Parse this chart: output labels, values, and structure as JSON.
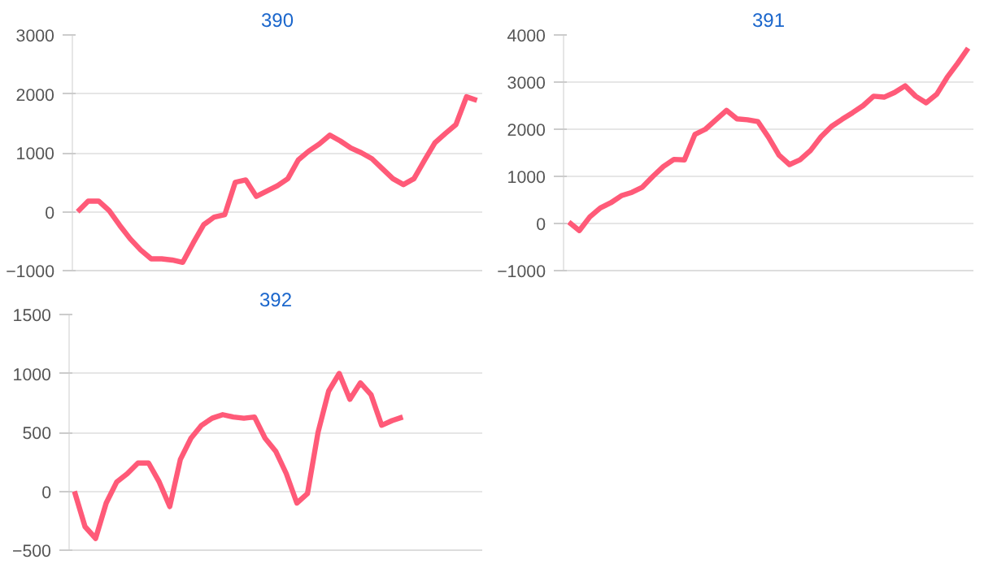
{
  "chart_data": [
    {
      "type": "line",
      "title": "390",
      "categories": [
        null,
        null,
        null,
        null,
        null,
        null,
        null,
        null,
        null,
        null,
        null,
        null,
        null,
        null,
        null,
        null,
        null,
        null,
        null,
        null,
        null,
        null,
        null,
        null,
        null,
        null,
        null,
        null,
        null,
        null,
        null,
        null,
        null,
        null,
        null,
        null,
        null,
        null,
        null
      ],
      "series": [
        {
          "color": "#ff5a78",
          "values": [
            0,
            180,
            180,
            20,
            -230,
            -460,
            -650,
            -800,
            -800,
            -820,
            -860,
            -530,
            -220,
            -90,
            -50,
            500,
            540,
            260,
            350,
            440,
            560,
            880,
            1030,
            1150,
            1300,
            1200,
            1080,
            1000,
            900,
            730,
            560,
            460,
            560,
            870,
            1170,
            1330,
            1480,
            1950,
            1890
          ]
        }
      ],
      "ylim": [
        -1000,
        3000
      ],
      "yticks": [
        -1000,
        0,
        1000,
        2000,
        3000
      ],
      "grid": "y",
      "tick_labels": "y",
      "marker": "none",
      "line_style": "solid"
    },
    {
      "type": "line",
      "title": "391",
      "categories": [
        null,
        null,
        null,
        null,
        null,
        null,
        null,
        null,
        null,
        null,
        null,
        null,
        null,
        null,
        null,
        null,
        null,
        null,
        null,
        null,
        null,
        null,
        null,
        null,
        null,
        null,
        null,
        null,
        null,
        null,
        null,
        null,
        null,
        null,
        null,
        null,
        null,
        null,
        null
      ],
      "series": [
        {
          "color": "#ff5a78",
          "values": [
            30,
            -150,
            140,
            330,
            440,
            590,
            660,
            770,
            1000,
            1210,
            1360,
            1350,
            1890,
            2000,
            2200,
            2400,
            2220,
            2200,
            2160,
            1830,
            1450,
            1250,
            1350,
            1550,
            1840,
            2060,
            2210,
            2350,
            2500,
            2700,
            2680,
            2780,
            2920,
            2700,
            2560,
            2740,
            3100,
            3400,
            3720
          ]
        }
      ],
      "ylim": [
        -1000,
        4000
      ],
      "yticks": [
        -1000,
        0,
        1000,
        2000,
        3000,
        4000
      ],
      "grid": "y",
      "tick_labels": "y",
      "marker": "none",
      "line_style": "solid"
    },
    {
      "type": "line",
      "title": "392",
      "categories": [
        null,
        null,
        null,
        null,
        null,
        null,
        null,
        null,
        null,
        null,
        null,
        null,
        null,
        null,
        null,
        null,
        null,
        null,
        null,
        null,
        null,
        null,
        null,
        null,
        null,
        null,
        null,
        null,
        null,
        null,
        null,
        null,
        null,
        null,
        null,
        null,
        null,
        null,
        null
      ],
      "series": [
        {
          "color": "#ff5a78",
          "values": [
            0,
            -300,
            -400,
            -100,
            80,
            150,
            240,
            240,
            80,
            -130,
            270,
            450,
            560,
            620,
            650,
            630,
            620,
            630,
            450,
            340,
            150,
            -100,
            -20,
            500,
            850,
            1000,
            780,
            920,
            820,
            560,
            600,
            630,
            null,
            null,
            null,
            null,
            null,
            null,
            null
          ]
        }
      ],
      "ylim": [
        -500,
        1500
      ],
      "yticks": [
        -500,
        0,
        500,
        1000,
        1500
      ],
      "grid": "y",
      "tick_labels": "y",
      "marker": "none",
      "line_style": "solid"
    }
  ]
}
